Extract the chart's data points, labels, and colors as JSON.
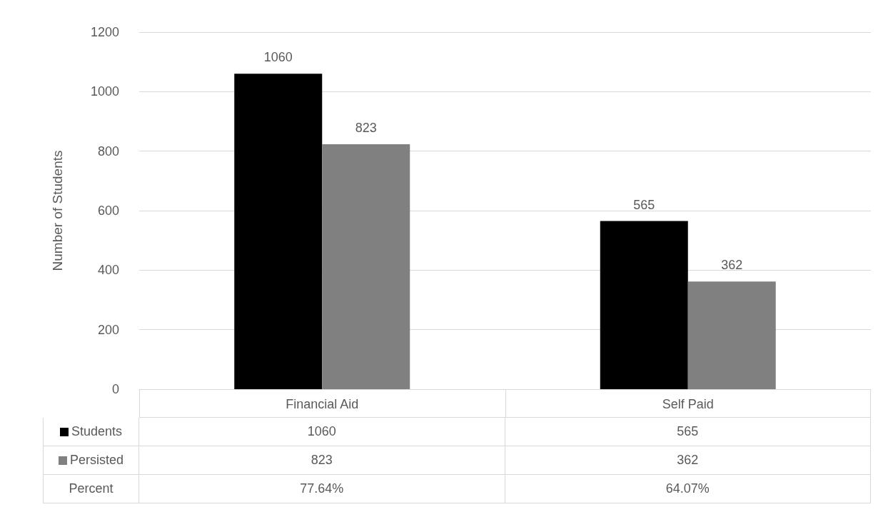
{
  "chart_data": {
    "type": "bar",
    "ylabel": "Number of Students",
    "categories": [
      "Financial Aid",
      "Self Paid"
    ],
    "series": [
      {
        "name": "Students",
        "color": "#000000",
        "values": [
          1060,
          565
        ],
        "value_labels": [
          "1060",
          "565"
        ]
      },
      {
        "name": "Persisted",
        "color": "#808080",
        "values": [
          823,
          362
        ],
        "value_labels": [
          "823",
          "362"
        ]
      }
    ],
    "ylim": [
      0,
      1200
    ],
    "yticks": [
      0,
      200,
      400,
      600,
      800,
      1000,
      1200
    ],
    "grid": "y",
    "legend": "bottom",
    "annotations": [
      "1060",
      "565",
      "823",
      "362",
      "Percent",
      "77.64%",
      "64.07%"
    ]
  }
}
